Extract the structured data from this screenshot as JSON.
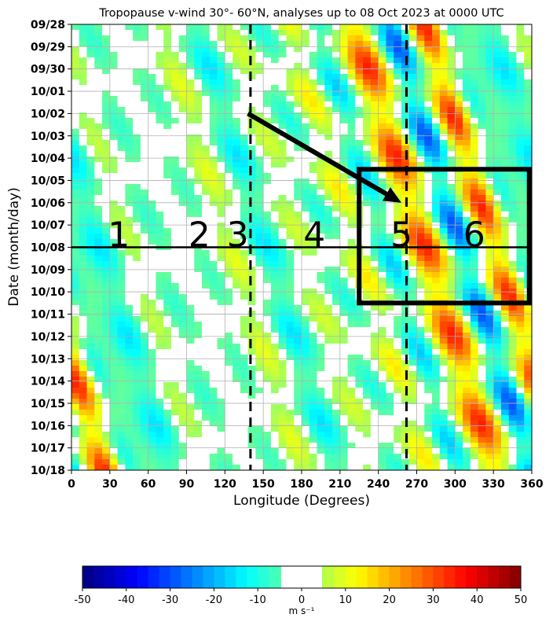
{
  "chart_data": {
    "type": "heatmap",
    "title": "Tropopause v-wind 30°- 60°N, analyses up to 08 Oct 2023 at 0000 UTC",
    "xlabel": "Longitude (Degrees)",
    "ylabel": "Date (month/day)",
    "x_range": [
      0,
      360
    ],
    "x_ticks": [
      0,
      30,
      60,
      90,
      120,
      150,
      180,
      210,
      240,
      270,
      300,
      330,
      360
    ],
    "y_ticks": [
      "09/28",
      "09/29",
      "09/30",
      "10/01",
      "10/02",
      "10/03",
      "10/04",
      "10/05",
      "10/06",
      "10/07",
      "10/08",
      "10/09",
      "10/10",
      "10/11",
      "10/12",
      "10/13",
      "10/14",
      "10/15",
      "10/16",
      "10/17",
      "10/18"
    ],
    "analysis_date": "10/08",
    "grid": true,
    "dashed_longitudes": [
      140,
      262
    ],
    "arrow": {
      "from": {
        "lon": 138,
        "date": "10/02"
      },
      "to": {
        "lon": 258,
        "date": "10/06"
      }
    },
    "box": {
      "lon": [
        225,
        358
      ],
      "date": [
        "10/04 12Z",
        "10/10 12Z"
      ]
    },
    "region_labels": [
      {
        "text": "1",
        "lon": 37
      },
      {
        "text": "2",
        "lon": 100
      },
      {
        "text": "3",
        "lon": 130
      },
      {
        "text": "4",
        "lon": 190
      },
      {
        "text": "5",
        "lon": 258
      },
      {
        "text": "6",
        "lon": 315
      }
    ],
    "bands": [
      {
        "lon_start": 5,
        "lon_end": 45,
        "value": -18
      },
      {
        "lon_start": 25,
        "lon_end": 65,
        "value": 14
      },
      {
        "lon_start": 45,
        "lon_end": 90,
        "value": -14
      },
      {
        "lon_start": 65,
        "lon_end": 110,
        "value": 14
      },
      {
        "lon_start": 80,
        "lon_end": 125,
        "value": -16
      },
      {
        "lon_start": 105,
        "lon_end": 145,
        "value": 16
      },
      {
        "lon_start": 130,
        "lon_end": 175,
        "value": -18
      },
      {
        "lon_start": 160,
        "lon_end": 210,
        "value": 22
      },
      {
        "lon_start": 175,
        "lon_end": 230,
        "value": -30
      },
      {
        "lon_start": 200,
        "lon_end": 250,
        "value": 32
      },
      {
        "lon_start": 225,
        "lon_end": 265,
        "value": -30
      },
      {
        "lon_start": 255,
        "lon_end": 300,
        "value": 38
      },
      {
        "lon_start": 285,
        "lon_end": 325,
        "value": -38
      },
      {
        "lon_start": 310,
        "lon_end": 350,
        "value": 40
      },
      {
        "lon_start": 335,
        "lon_end": 360,
        "value": -20
      }
    ],
    "colorbar": {
      "min": -50,
      "max": 50,
      "ticks": [
        -50,
        -40,
        -30,
        -20,
        -10,
        0,
        10,
        20,
        30,
        40,
        50
      ],
      "unit": "m s⁻¹",
      "white_range": [
        -2.5,
        2.5
      ]
    }
  }
}
